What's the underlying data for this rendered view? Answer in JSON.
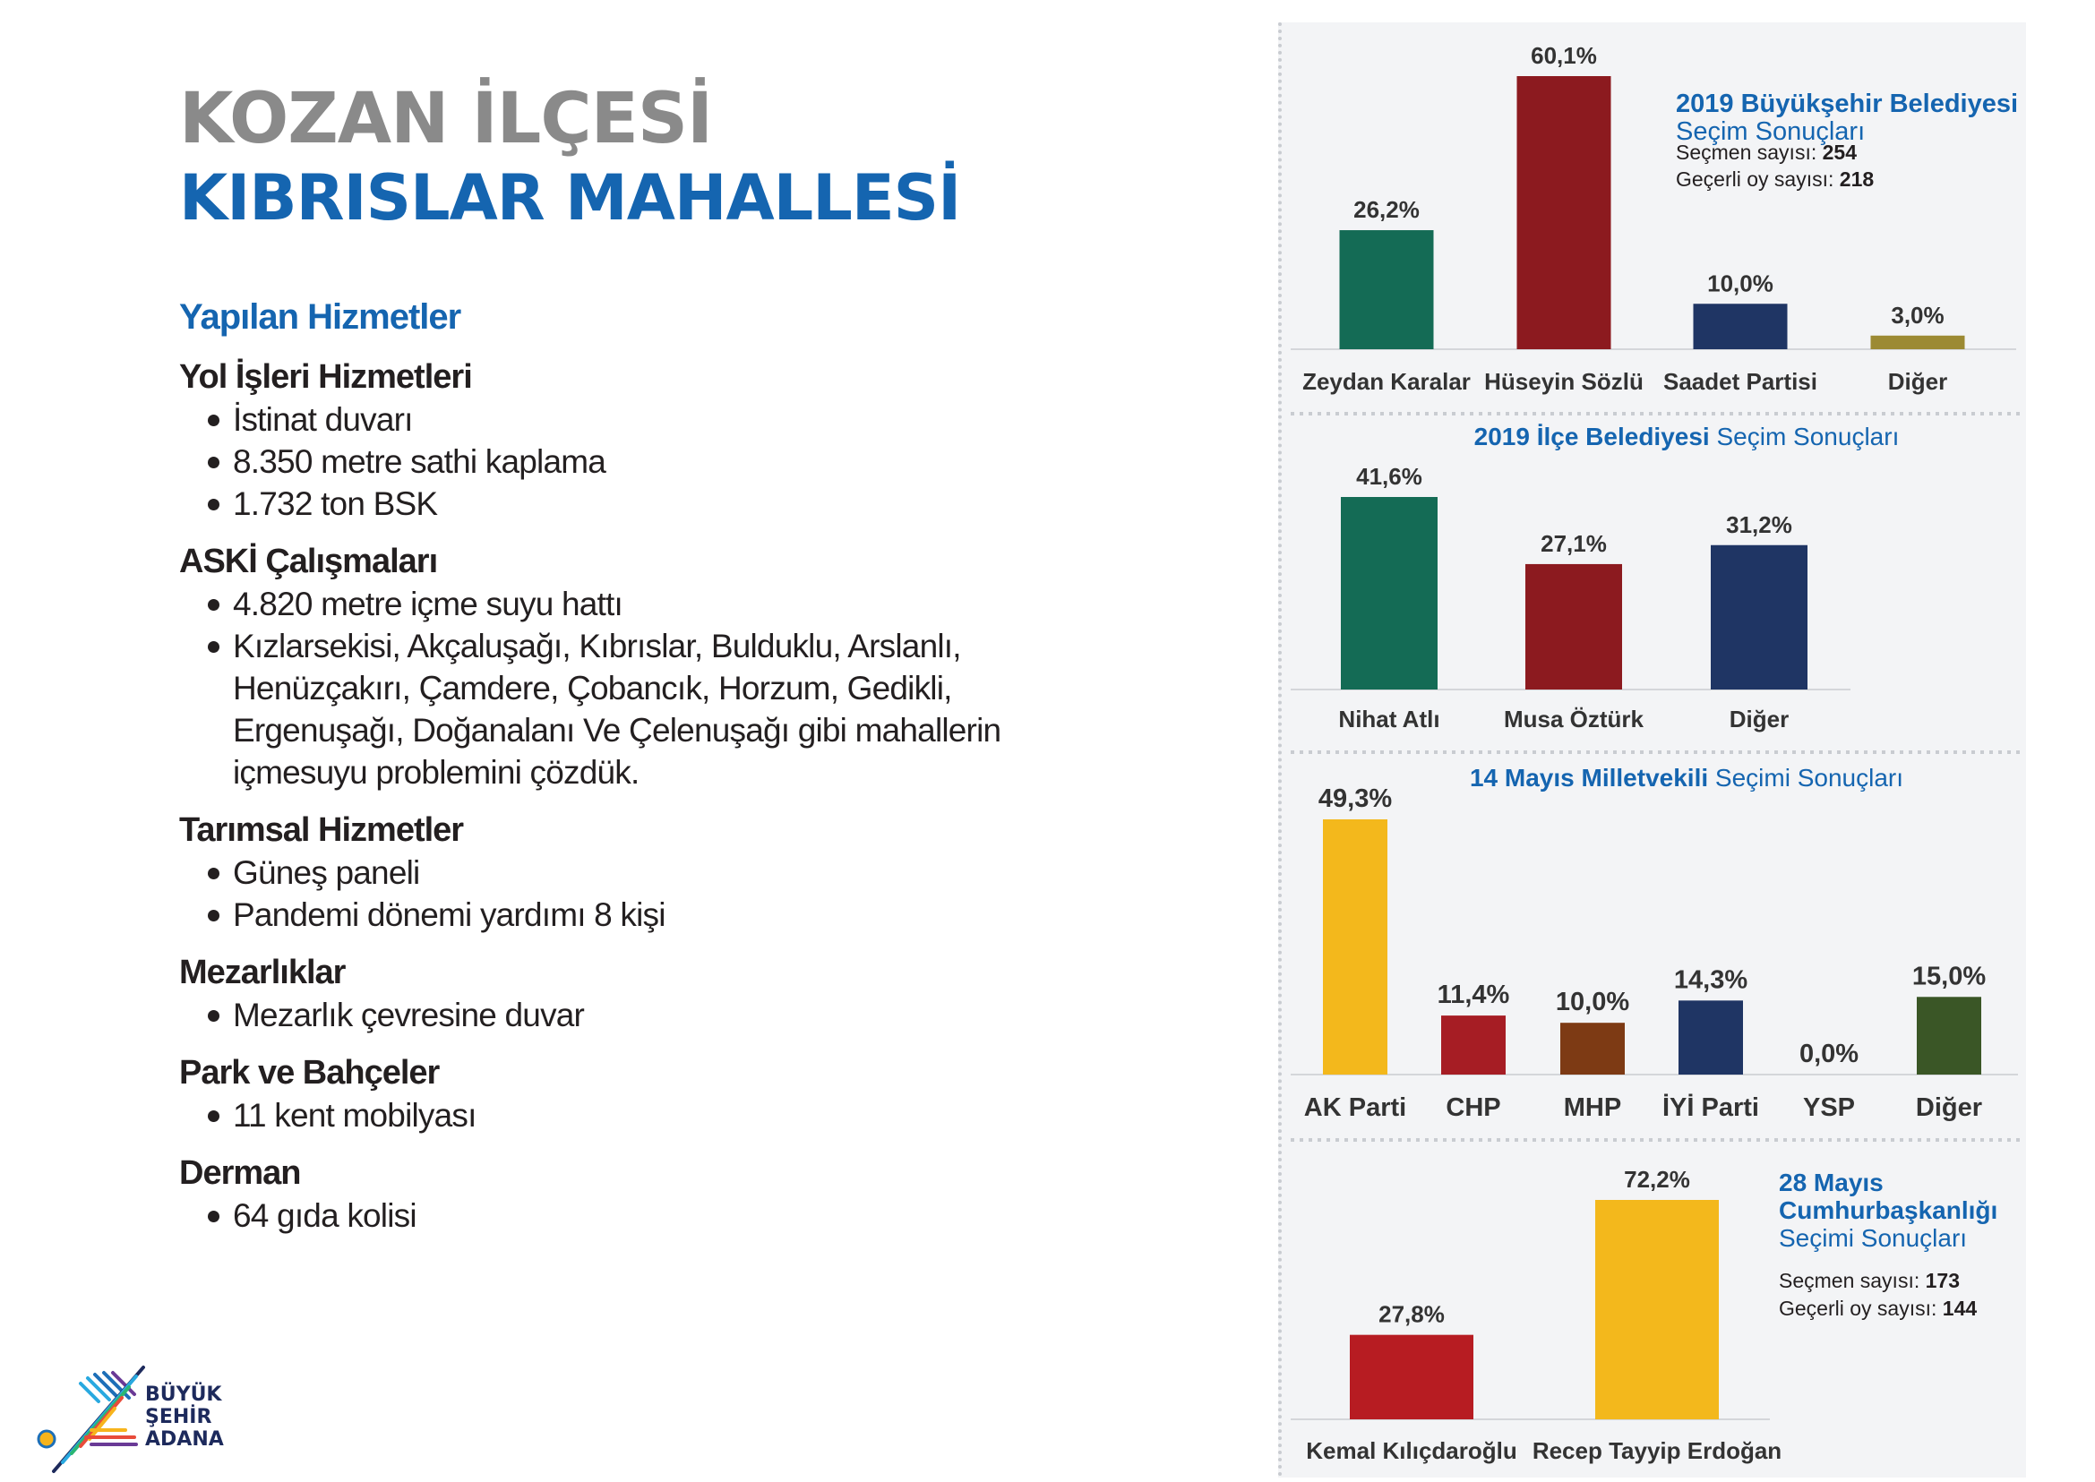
{
  "header": {
    "title_line1": "KOZAN İLÇESİ",
    "title_line2": "KIBRISLAR MAHALLESİ"
  },
  "services": {
    "heading": "Yapılan Hizmetler",
    "categories": [
      {
        "title": "Yol İşleri Hizmetleri",
        "items": [
          "İstinat duvarı",
          "8.350 metre sathi kaplama",
          "1.732 ton BSK"
        ]
      },
      {
        "title": "ASKİ Çalışmaları",
        "items": [
          "4.820 metre içme suyu hattı",
          "Kızlarsekisi, Akçaluşağı, Kıbrıslar, Bulduklu, Arslanlı, Henüzçakırı, Çamdere, Çobancık, Horzum, Gedikli, Ergenuşağı, Doğanalanı Ve Çelenuşağı gibi mahallerin içmesuyu problemini çözdük."
        ]
      },
      {
        "title": "Tarımsal Hizmetler",
        "items": [
          "Güneş paneli",
          "Pandemi dönemi yardımı 8 kişi"
        ]
      },
      {
        "title": "Mezarlıklar",
        "items": [
          "Mezarlık çevresine duvar"
        ]
      },
      {
        "title": "Park ve Bahçeler",
        "items": [
          "11 kent mobilyası"
        ]
      },
      {
        "title": "Derman",
        "items": [
          "64 gıda kolisi"
        ]
      }
    ]
  },
  "logo": {
    "line1": "BÜYÜK",
    "line2": "ŞEHİR",
    "line3": "ADANA"
  },
  "chart_data": [
    {
      "type": "bar",
      "title_bold": "2019 Büyükşehir Belediyesi",
      "title_regular": "Seçim Sonuçları",
      "info": [
        {
          "label": "Seçmen sayısı: ",
          "value": "254"
        },
        {
          "label": "Geçerli oy sayısı: ",
          "value": "218"
        }
      ],
      "categories": [
        "Zeydan Karalar",
        "Hüseyin Sözlü",
        "Saadet Partisi",
        "Diğer"
      ],
      "values": [
        26.2,
        60.1,
        10.0,
        3.0
      ],
      "labels": [
        "26,2%",
        "60,1%",
        "10,0%",
        "3,0%"
      ],
      "colors": [
        "#146b55",
        "#8c1a1f",
        "#1f3564",
        "#9c8a33"
      ]
    },
    {
      "type": "bar",
      "title_bold": "2019 İlçe Belediyesi",
      "title_regular": "Seçim Sonuçları",
      "categories": [
        "Nihat Atlı",
        "Musa Öztürk",
        "Diğer"
      ],
      "values": [
        41.6,
        27.1,
        31.2
      ],
      "labels": [
        "41,6%",
        "27,1%",
        "31,2%"
      ],
      "colors": [
        "#146b55",
        "#8c1a1f",
        "#1f3564"
      ]
    },
    {
      "type": "bar",
      "title_bold": "14 Mayıs Milletvekili",
      "title_regular": "Seçimi Sonuçları",
      "categories": [
        "AK Parti",
        "CHP",
        "MHP",
        "İYİ Parti",
        "YSP",
        "Diğer"
      ],
      "values": [
        49.3,
        11.4,
        10.0,
        14.3,
        0.0,
        15.0
      ],
      "labels": [
        "49,3%",
        "11,4%",
        "10,0%",
        "14,3%",
        "0,0%",
        "15,0%"
      ],
      "colors": [
        "#f3b81c",
        "#a61d24",
        "#7d3a14",
        "#1f3564",
        "#8a8a8a",
        "#3a5626"
      ]
    },
    {
      "type": "bar",
      "title_bold": "28 Mayıs Cumhurbaşkanlığı",
      "title_regular": "Seçimi Sonuçları",
      "info": [
        {
          "label": "Seçmen sayısı: ",
          "value": "173"
        },
        {
          "label": "Geçerli oy sayısı: ",
          "value": "144"
        }
      ],
      "categories": [
        "Kemal Kılıçdaroğlu",
        "Recep Tayyip Erdoğan"
      ],
      "values": [
        27.8,
        72.2
      ],
      "labels": [
        "27,8%",
        "72,2%"
      ],
      "colors": [
        "#b71c22",
        "#f3b81c"
      ]
    }
  ]
}
